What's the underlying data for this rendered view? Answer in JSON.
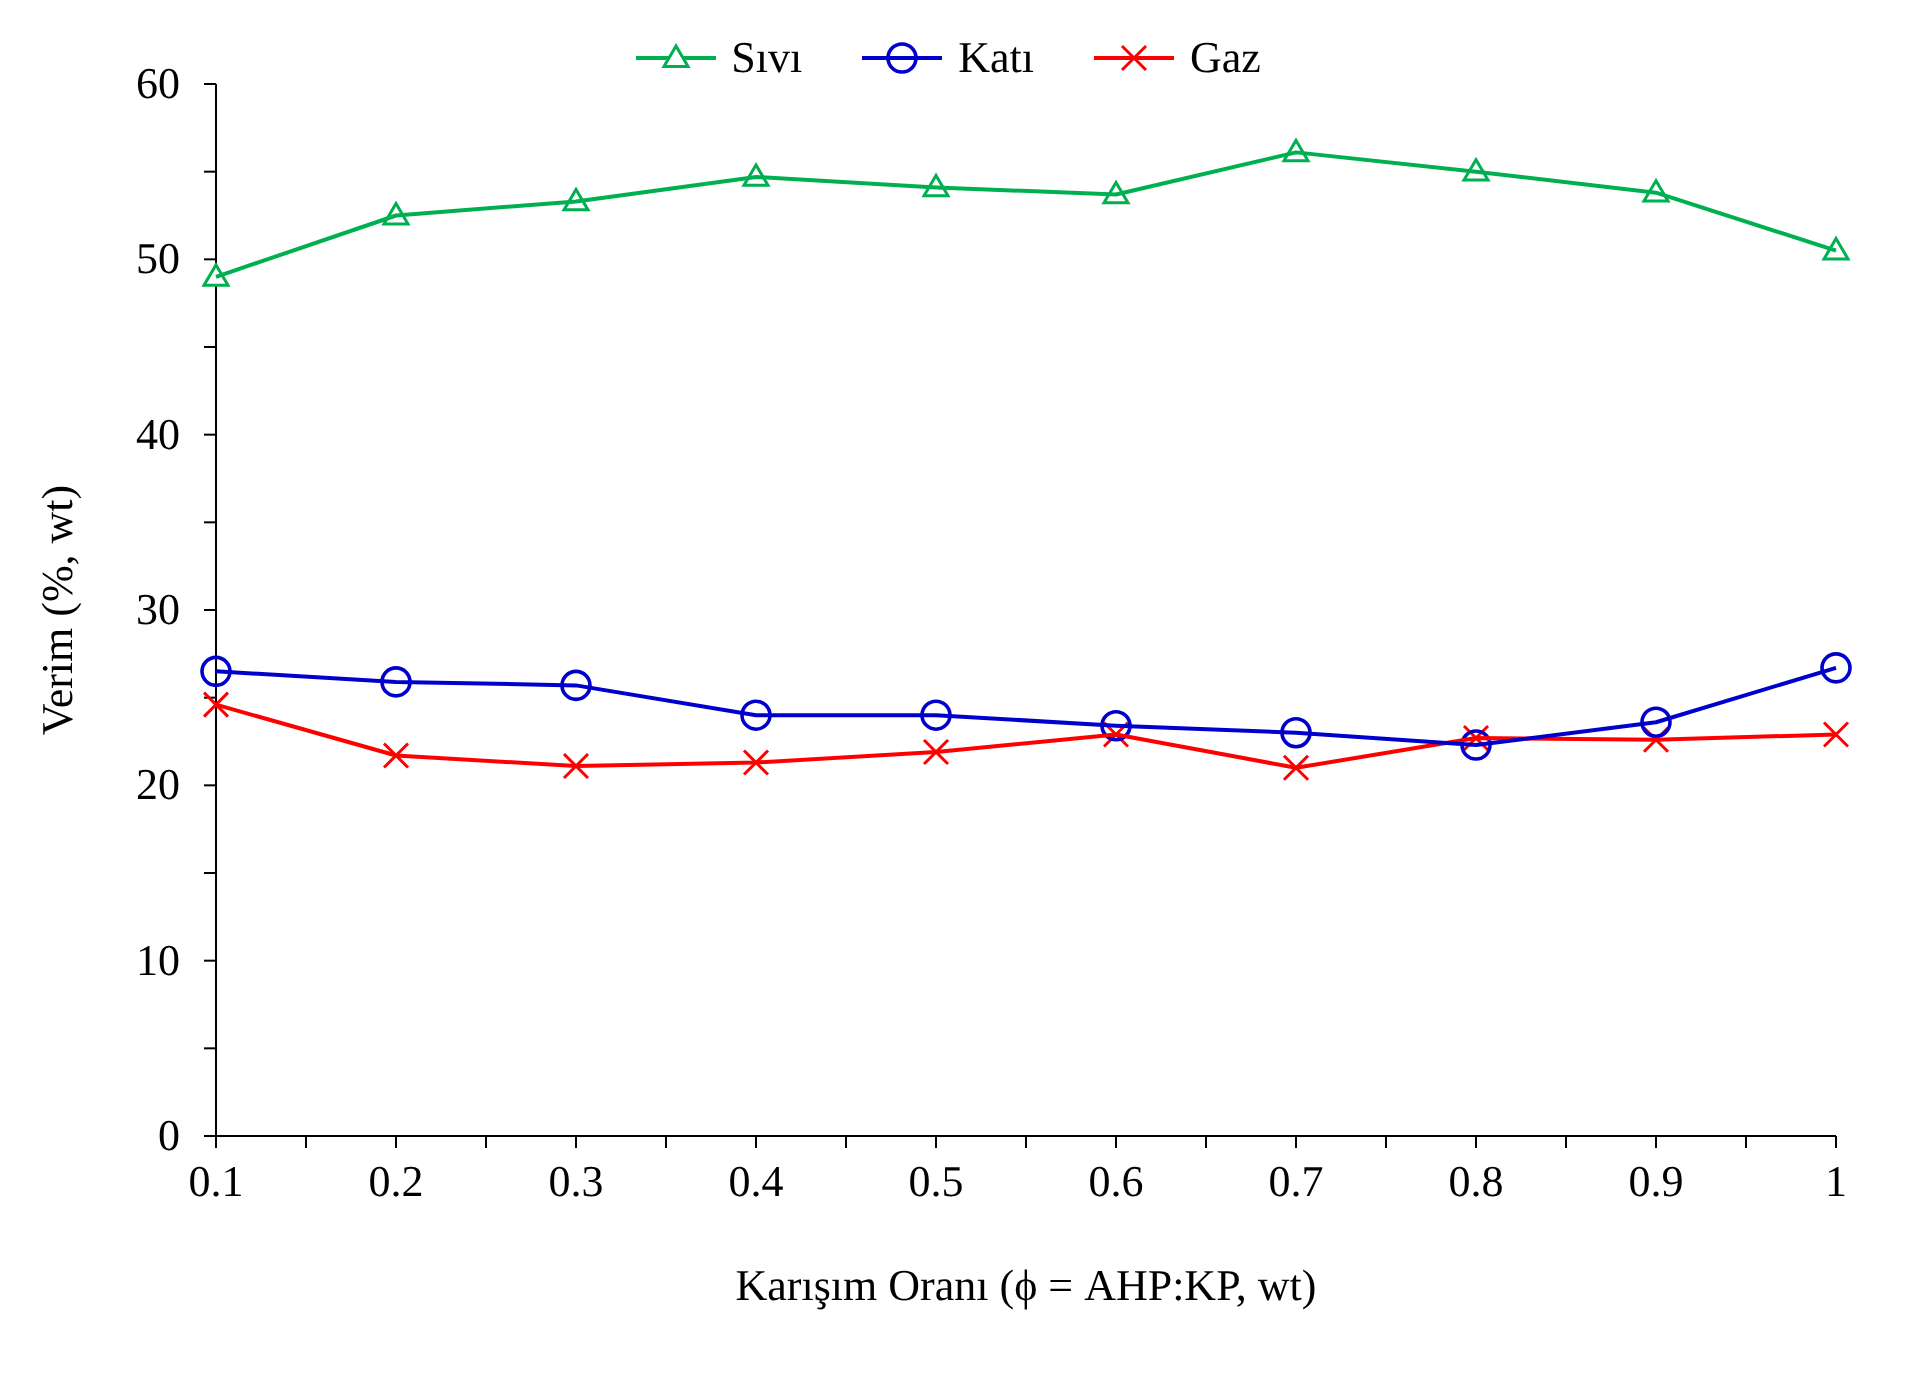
{
  "chart_data": {
    "type": "line",
    "xlabel": "Karışım Oranı (ϕ = AHP:KP, wt)",
    "ylabel": "Verim (%, wt)",
    "x": [
      0.1,
      0.2,
      0.3,
      0.4,
      0.5,
      0.6,
      0.7,
      0.8,
      0.9,
      1
    ],
    "series": [
      {
        "name": "Sıvı",
        "color": "#00b050",
        "marker": "triangle",
        "values": [
          49.0,
          52.5,
          53.3,
          54.7,
          54.1,
          53.7,
          56.1,
          55.0,
          53.8,
          50.5
        ]
      },
      {
        "name": "Katı",
        "color": "#0000cc",
        "marker": "circle",
        "values": [
          26.5,
          25.9,
          25.7,
          24.0,
          24.0,
          23.4,
          23.0,
          22.3,
          23.6,
          26.7
        ]
      },
      {
        "name": "Gaz",
        "color": "#ff0000",
        "marker": "cross",
        "values": [
          24.6,
          21.7,
          21.1,
          21.3,
          21.9,
          22.9,
          21.0,
          22.7,
          22.6,
          22.9
        ]
      }
    ],
    "xlim": [
      0.1,
      1
    ],
    "xticks": [
      0.1,
      {
        "value": 0.15,
        "label": null
      },
      0.2,
      {
        "value": 0.25,
        "label": null
      },
      0.3,
      {
        "value": 0.35,
        "label": null
      },
      0.4,
      {
        "value": 0.45,
        "label": null
      },
      0.5,
      {
        "value": 0.55,
        "label": null
      },
      0.6,
      {
        "value": 0.65,
        "label": null
      },
      0.7,
      {
        "value": 0.75,
        "label": null
      },
      0.8,
      {
        "value": 0.85,
        "label": null
      },
      0.9,
      {
        "value": 0.95,
        "label": null
      },
      1
    ],
    "ylim": [
      0,
      60
    ],
    "yticks": [
      0,
      {
        "value": 5,
        "label": null
      },
      10,
      {
        "value": 15,
        "label": null
      },
      20,
      {
        "value": 25,
        "label": null
      },
      30,
      {
        "value": 35,
        "label": null
      },
      40,
      {
        "value": 45,
        "label": null
      },
      50,
      {
        "value": 55,
        "label": null
      },
      60
    ],
    "grid": false,
    "legend": "top",
    "line_style": "solid"
  }
}
